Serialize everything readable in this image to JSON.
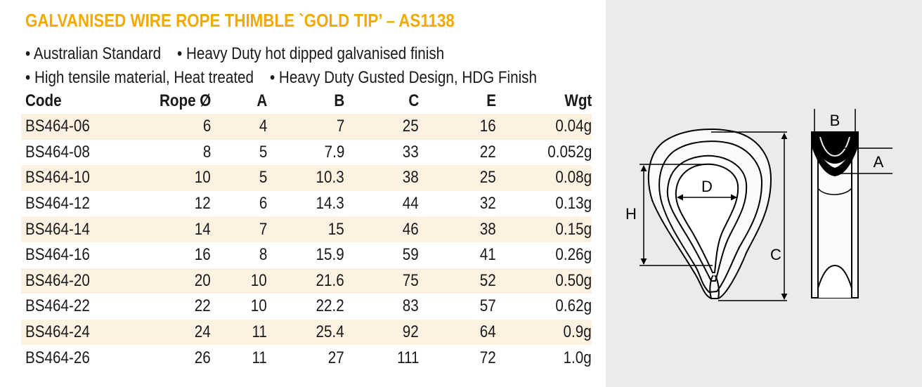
{
  "title": "GALVANISED WIRE ROPE THIMBLE `GOLD TIP’ – AS1138",
  "bullets": [
    [
      "• Australian Standard",
      "• Heavy Duty hot dipped galvanised finish"
    ],
    [
      "• High tensile material, Heat treated",
      "• Heavy Duty Gusted Design, HDG Finish"
    ]
  ],
  "table": {
    "headers": [
      "Code",
      "Rope Ø",
      "A",
      "B",
      "C",
      "E",
      "Wgt"
    ],
    "rows": [
      [
        "BS464-06",
        "6",
        "4",
        "7",
        "25",
        "16",
        "0.04g"
      ],
      [
        "BS464-08",
        "8",
        "5",
        "7.9",
        "33",
        "22",
        "0.052g"
      ],
      [
        "BS464-10",
        "10",
        "5",
        "10.3",
        "38",
        "25",
        "0.08g"
      ],
      [
        "BS464-12",
        "12",
        "6",
        "14.3",
        "44",
        "32",
        "0.13g"
      ],
      [
        "BS464-14",
        "14",
        "7",
        "15",
        "46",
        "38",
        "0.15g"
      ],
      [
        "BS464-16",
        "16",
        "8",
        "15.9",
        "59",
        "41",
        "0.26g"
      ],
      [
        "BS464-20",
        "20",
        "10",
        "21.6",
        "75",
        "52",
        "0.50g"
      ],
      [
        "BS464-22",
        "22",
        "10",
        "22.2",
        "83",
        "57",
        "0.62g"
      ],
      [
        "BS464-24",
        "24",
        "11",
        "25.4",
        "92",
        "64",
        "0.9g"
      ],
      [
        "BS464-26",
        "26",
        "11",
        "27",
        "111",
        "72",
        "1.0g"
      ]
    ]
  },
  "diagram": {
    "labels": {
      "b": "B",
      "a": "A",
      "d": "D",
      "h": "H",
      "c": "C"
    }
  },
  "colors": {
    "title": "#f2a900",
    "row_shade": "#fdf2e2",
    "panel": "#ebebeb"
  }
}
